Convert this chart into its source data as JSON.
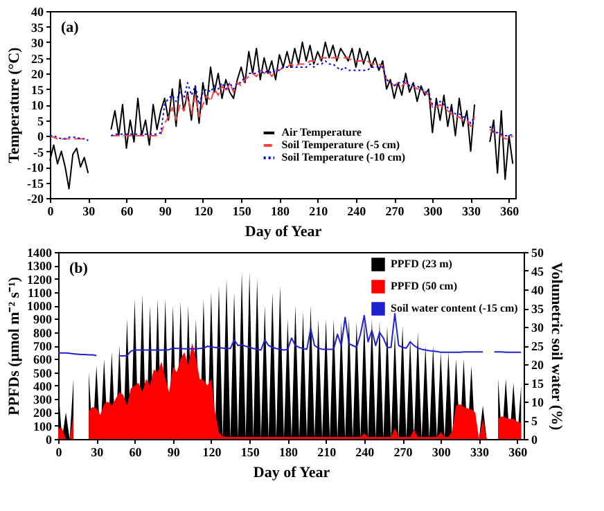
{
  "chart_data": [
    {
      "type": "line",
      "xlabel": "Day of Year",
      "ylabel": "Temperature (°C)",
      "annotations": [
        "(a)"
      ],
      "xlim": [
        0,
        365
      ],
      "ylim": [
        -20,
        40
      ],
      "xticks": [
        0,
        30,
        60,
        90,
        120,
        150,
        180,
        210,
        240,
        270,
        300,
        330,
        360
      ],
      "yticks": [
        -20,
        -15,
        -10,
        -5,
        0,
        5,
        10,
        15,
        20,
        25,
        30,
        35,
        40
      ],
      "legend": "bottom right",
      "grid": false,
      "marker": "none",
      "x": [
        0,
        3,
        6,
        9,
        12,
        15,
        18,
        21,
        24,
        27,
        30,
        33,
        36,
        39,
        42,
        45,
        48,
        51,
        54,
        57,
        60,
        63,
        66,
        69,
        72,
        75,
        78,
        81,
        84,
        87,
        90,
        93,
        96,
        99,
        102,
        105,
        108,
        111,
        114,
        117,
        120,
        123,
        126,
        129,
        132,
        135,
        138,
        141,
        144,
        147,
        150,
        153,
        156,
        159,
        162,
        165,
        168,
        171,
        174,
        177,
        180,
        183,
        186,
        189,
        192,
        195,
        198,
        201,
        204,
        207,
        210,
        213,
        216,
        219,
        222,
        225,
        228,
        231,
        234,
        237,
        240,
        243,
        246,
        249,
        252,
        255,
        258,
        261,
        264,
        267,
        270,
        273,
        276,
        279,
        282,
        285,
        288,
        291,
        294,
        297,
        300,
        303,
        306,
        309,
        312,
        315,
        318,
        321,
        324,
        327,
        330,
        333,
        336,
        339,
        342,
        345,
        348,
        351,
        354,
        357,
        360,
        363
      ],
      "series": [
        {
          "name": "Air Temperature",
          "color": "#000000",
          "line_style": "solid",
          "values": [
            -8,
            -3,
            -9,
            -5,
            -10,
            -17,
            -6,
            -4,
            -10,
            -7,
            -12,
            null,
            null,
            null,
            null,
            null,
            2,
            8,
            0,
            10,
            -4,
            5,
            -2,
            12,
            0,
            5,
            -3,
            10,
            2,
            8,
            12,
            5,
            15,
            3,
            18,
            8,
            14,
            5,
            16,
            4,
            17,
            10,
            22,
            14,
            20,
            12,
            18,
            14,
            12,
            18,
            22,
            17,
            27,
            20,
            28,
            18,
            25,
            20,
            24,
            18,
            26,
            22,
            27,
            22,
            28,
            23,
            30,
            24,
            29,
            23,
            27,
            24,
            30,
            25,
            29,
            24,
            28,
            26,
            24,
            28,
            22,
            28,
            23,
            27,
            22,
            25,
            21,
            24,
            15,
            18,
            12,
            17,
            13,
            20,
            14,
            17,
            11,
            16,
            13,
            15,
            1,
            12,
            5,
            13,
            3,
            10,
            0,
            12,
            3,
            8,
            -5,
            10,
            null,
            null,
            null,
            -2,
            5,
            -12,
            8,
            -14,
            0,
            -9
          ]
        },
        {
          "name": "Soil Temperature (-5 cm)",
          "color": "#ff4040",
          "line_style": "dashed",
          "values": [
            0,
            -0.5,
            -1,
            -1,
            -1,
            -1,
            -1,
            -1,
            -1,
            -1,
            -1.5,
            null,
            null,
            null,
            null,
            null,
            0,
            0,
            0,
            0,
            0,
            0,
            0,
            0,
            0,
            0,
            0,
            0,
            0,
            0.5,
            4,
            6,
            9,
            5,
            10,
            8,
            13,
            7,
            13,
            6,
            10,
            13,
            11,
            15,
            13,
            16,
            14,
            17,
            14,
            17,
            16,
            18,
            19,
            20,
            19,
            21,
            20,
            21,
            19,
            21,
            21,
            22,
            22,
            23,
            22,
            23,
            23,
            23,
            24,
            24,
            24,
            25,
            25,
            25,
            25,
            25,
            25,
            25,
            25,
            24,
            24,
            24,
            24,
            24,
            23,
            23,
            23,
            22,
            18,
            17,
            16,
            17,
            16,
            17,
            16,
            16,
            15,
            15,
            14,
            13,
            9,
            9,
            10,
            9,
            8,
            7,
            6,
            6,
            5,
            5,
            3,
            6,
            null,
            null,
            null,
            2,
            1,
            1,
            0,
            -1,
            -1,
            0
          ]
        },
        {
          "name": "Soil Temperature (-10 cm)",
          "color": "#0000ff",
          "line_style": "dotted",
          "values": [
            0,
            0,
            -0.5,
            -1,
            -1,
            -0.5,
            -0.5,
            -0.5,
            -1,
            -1,
            -1.5,
            null,
            null,
            null,
            null,
            null,
            0,
            0.5,
            0.5,
            0.5,
            0.5,
            0.5,
            0.5,
            0.5,
            0.5,
            0.5,
            0.5,
            0.5,
            0.5,
            1,
            10,
            12,
            13,
            11,
            14,
            12,
            17,
            13,
            16,
            10,
            14,
            15,
            14,
            16,
            15,
            17,
            15,
            17,
            15,
            17,
            17,
            19,
            20,
            20,
            20,
            21,
            20,
            21,
            20,
            21,
            21,
            22,
            22,
            22,
            22,
            22,
            22,
            22,
            23,
            22,
            23,
            23,
            24,
            23,
            23,
            22,
            21,
            22,
            21,
            21,
            21,
            21,
            21,
            21,
            22,
            22,
            22,
            22,
            18,
            17,
            16,
            17,
            17,
            18,
            16,
            16,
            16,
            15,
            14,
            14,
            10,
            10,
            11,
            10,
            9,
            8,
            7,
            7,
            6,
            6,
            4,
            6,
            null,
            null,
            null,
            3,
            1,
            1,
            0.5,
            0,
            0,
            0.5
          ]
        }
      ]
    },
    {
      "type": "area",
      "xlabel": "Day of Year",
      "ylabel": "PPFDs (µmol m⁻² s⁻¹)",
      "y2label": "Volumetric soil water (%)",
      "annotations": [
        "(b)"
      ],
      "xlim": [
        0,
        365
      ],
      "ylim": [
        0,
        1400
      ],
      "y2lim": [
        0,
        50
      ],
      "xticks": [
        0,
        30,
        60,
        90,
        120,
        150,
        180,
        210,
        240,
        270,
        300,
        330,
        360
      ],
      "yticks": [
        0,
        100,
        200,
        300,
        400,
        500,
        600,
        700,
        800,
        900,
        1000,
        1100,
        1200,
        1300,
        1400
      ],
      "y2ticks": [
        0,
        5,
        10,
        15,
        20,
        25,
        30,
        35,
        40,
        45,
        50
      ],
      "legend": "top right",
      "grid": false,
      "x": [
        0,
        3,
        6,
        9,
        12,
        15,
        18,
        21,
        24,
        27,
        30,
        33,
        36,
        39,
        42,
        45,
        48,
        51,
        54,
        57,
        60,
        63,
        66,
        69,
        72,
        75,
        78,
        81,
        84,
        87,
        90,
        93,
        96,
        99,
        102,
        105,
        108,
        111,
        114,
        117,
        120,
        123,
        126,
        129,
        132,
        135,
        138,
        141,
        144,
        147,
        150,
        153,
        156,
        159,
        162,
        165,
        168,
        171,
        174,
        177,
        180,
        183,
        186,
        189,
        192,
        195,
        198,
        201,
        204,
        207,
        210,
        213,
        216,
        219,
        222,
        225,
        228,
        231,
        234,
        237,
        240,
        243,
        246,
        249,
        252,
        255,
        258,
        261,
        264,
        267,
        270,
        273,
        276,
        279,
        282,
        285,
        288,
        291,
        294,
        297,
        300,
        303,
        306,
        309,
        312,
        315,
        318,
        321,
        324,
        327,
        330,
        333,
        336,
        339,
        342,
        345,
        348,
        351,
        354,
        357,
        360,
        363
      ],
      "series": [
        {
          "name": "PPFD (23 m)",
          "color": "#000000",
          "values": [
            400,
            0,
            200,
            0,
            450,
            null,
            null,
            null,
            500,
            0,
            550,
            0,
            600,
            0,
            650,
            0,
            700,
            0,
            900,
            0,
            1050,
            0,
            1080,
            0,
            1000,
            0,
            1050,
            0,
            1050,
            0,
            1000,
            0,
            1030,
            0,
            1000,
            0,
            900,
            0,
            1050,
            0,
            1100,
            0,
            1150,
            0,
            1200,
            0,
            1100,
            0,
            1250,
            0,
            1250,
            0,
            1200,
            0,
            1000,
            0,
            1100,
            0,
            1150,
            0,
            900,
            0,
            1000,
            0,
            950,
            0,
            1000,
            0,
            900,
            0,
            900,
            0,
            900,
            0,
            880,
            0,
            900,
            0,
            880,
            0,
            900,
            0,
            900,
            0,
            880,
            0,
            850,
            0,
            800,
            0,
            850,
            0,
            750,
            0,
            800,
            0,
            700,
            0,
            700,
            0,
            650,
            0,
            650,
            0,
            600,
            0,
            600,
            0,
            550,
            0,
            0,
            250,
            0,
            null,
            null,
            450,
            0,
            450,
            0,
            420,
            0,
            400
          ]
        },
        {
          "name": "PPFD (50 cm)",
          "color": "#ff0000",
          "values": [
            80,
            80,
            0,
            0,
            190,
            null,
            null,
            null,
            210,
            240,
            230,
            180,
            260,
            280,
            250,
            300,
            350,
            330,
            250,
            380,
            400,
            420,
            350,
            450,
            400,
            520,
            500,
            580,
            450,
            350,
            540,
            500,
            600,
            650,
            550,
            720,
            600,
            450,
            440,
            400,
            450,
            200,
            50,
            20,
            15,
            15,
            15,
            15,
            15,
            15,
            15,
            15,
            15,
            15,
            15,
            15,
            15,
            15,
            15,
            15,
            15,
            15,
            15,
            15,
            15,
            15,
            15,
            15,
            15,
            15,
            15,
            15,
            15,
            15,
            15,
            15,
            15,
            15,
            15,
            15,
            40,
            15,
            15,
            15,
            15,
            15,
            15,
            15,
            80,
            15,
            15,
            15,
            15,
            70,
            15,
            15,
            15,
            15,
            15,
            15,
            50,
            15,
            15,
            60,
            250,
            260,
            240,
            230,
            220,
            200,
            0,
            150,
            0,
            null,
            null,
            150,
            170,
            160,
            150,
            150,
            130,
            120
          ]
        },
        {
          "name": "Soil water content (-15 cm)",
          "color": "#2020d0",
          "type": "line",
          "axis": "y2",
          "values": [
            23,
            23,
            23,
            22.9,
            22.8,
            22.7,
            22.6,
            22.6,
            22.5,
            22.5,
            22.3,
            null,
            null,
            null,
            null,
            null,
            22.2,
            22.2,
            22.3,
            23.5,
            23.8,
            23.8,
            23.8,
            23.8,
            23.8,
            23.8,
            23.8,
            23.8,
            23.8,
            23.9,
            24.3,
            24.2,
            24.2,
            24.1,
            24.1,
            24.1,
            24.1,
            24.2,
            24.3,
            24.8,
            24.6,
            24.5,
            24.4,
            24.3,
            24.2,
            24.2,
            26.5,
            25,
            25.2,
            24.8,
            24.5,
            24.2,
            24,
            23.8,
            26.5,
            25,
            24.5,
            24.2,
            24,
            23.8,
            24,
            27,
            25,
            24.5,
            24.2,
            24,
            29.5,
            25,
            24.3,
            24,
            24,
            24,
            24,
            28,
            25,
            32.5,
            25.5,
            25,
            24.5,
            28,
            33,
            26,
            29,
            25,
            28.5,
            27,
            24.5,
            24.5,
            33.5,
            25,
            24.5,
            24.3,
            26,
            25,
            24.3,
            24,
            23.8,
            23.6,
            23.5,
            23.4,
            23.2,
            23.2,
            23.2,
            23.2,
            23.2,
            23.2,
            23.3,
            23.3,
            23.3,
            23.3,
            23.3,
            23.3,
            null,
            null,
            23.3,
            23.3,
            23.3,
            23.2,
            23.2,
            23.2,
            23.2,
            23.2
          ]
        }
      ]
    }
  ]
}
